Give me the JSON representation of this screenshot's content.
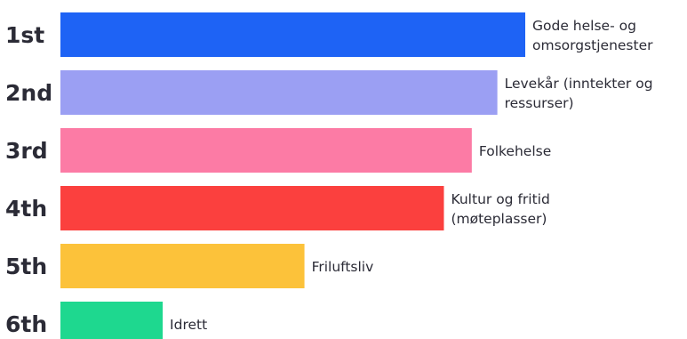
{
  "chart_data": {
    "type": "bar",
    "orientation": "horizontal",
    "categories": [
      "1st",
      "2nd",
      "3rd",
      "4th",
      "5th",
      "6th"
    ],
    "bar_labels": [
      [
        "Gode helse- og",
        "omsorgstjenester"
      ],
      [
        "Levekår (inntekter og",
        "ressurser)"
      ],
      [
        "Folkehelse"
      ],
      [
        "Kultur og fritid",
        "(møteplasser)"
      ],
      [
        "Friluftsliv"
      ],
      [
        "Idrett"
      ]
    ],
    "values": [
      100,
      94,
      88.5,
      82.5,
      52.5,
      22
    ],
    "xlim": [
      0,
      100
    ],
    "colors": [
      "#1e63f5",
      "#9b9ff3",
      "#fc7ba5",
      "#fb403e",
      "#fcc23a",
      "#1ed88f"
    ],
    "axes_visible": false,
    "grid": false
  }
}
